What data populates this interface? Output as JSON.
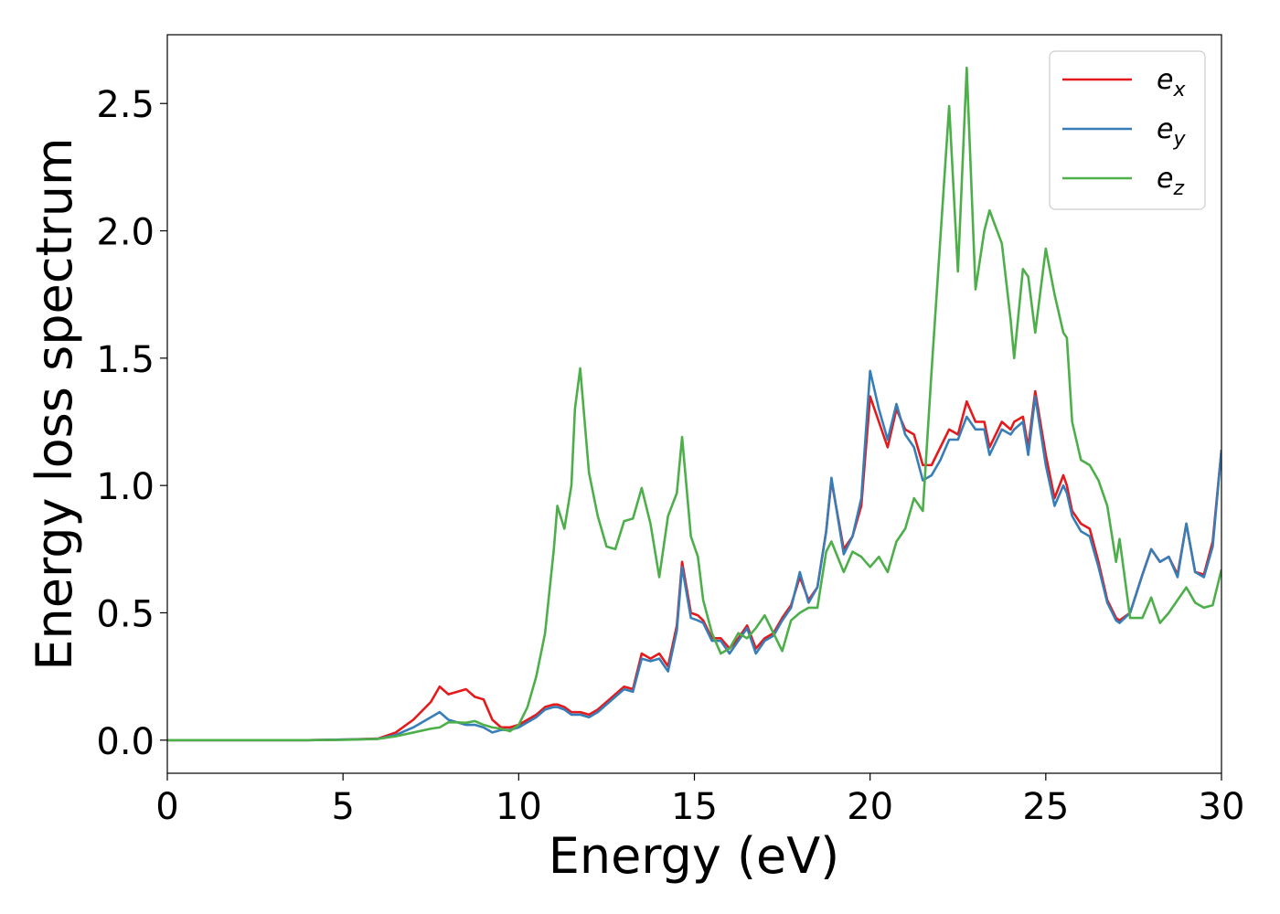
{
  "chart_data": {
    "type": "line",
    "xlabel": "Energy (eV)",
    "ylabel": "Energy loss spectrum",
    "x": [
      0,
      1,
      2,
      3,
      4,
      5,
      6,
      6.5,
      7,
      7.5,
      7.75,
      8,
      8.25,
      8.5,
      8.75,
      9,
      9.25,
      9.5,
      9.75,
      10,
      10.25,
      10.5,
      10.75,
      11,
      11.1,
      11.3,
      11.5,
      11.6,
      11.75,
      12,
      12.25,
      12.5,
      12.75,
      13,
      13.25,
      13.5,
      13.75,
      14,
      14.25,
      14.5,
      14.65,
      14.9,
      15.1,
      15.25,
      15.5,
      15.75,
      16,
      16.25,
      16.5,
      16.75,
      17,
      17.25,
      17.5,
      17.75,
      18,
      18.25,
      18.5,
      18.75,
      18.9,
      19.25,
      19.5,
      19.75,
      20,
      20.25,
      20.5,
      20.75,
      21,
      21.25,
      21.5,
      21.75,
      22,
      22.25,
      22.5,
      22.75,
      23,
      23.25,
      23.4,
      23.75,
      24,
      24.1,
      24.35,
      24.5,
      24.7,
      25,
      25.25,
      25.5,
      25.6,
      25.75,
      26,
      26.25,
      26.5,
      26.75,
      27,
      27.1,
      27.4,
      27.75,
      28,
      28.25,
      28.5,
      28.75,
      29,
      29.25,
      29.5,
      29.75,
      30
    ],
    "series": [
      {
        "name": "ex",
        "color": "#e41a1c",
        "values": [
          0,
          0,
          0,
          0,
          0,
          0.002,
          0.006,
          0.03,
          0.08,
          0.15,
          0.21,
          0.18,
          0.19,
          0.2,
          0.17,
          0.16,
          0.08,
          0.05,
          0.05,
          0.06,
          0.08,
          0.1,
          0.13,
          0.14,
          0.14,
          0.13,
          0.11,
          0.11,
          0.11,
          0.1,
          0.12,
          0.15,
          0.18,
          0.21,
          0.2,
          0.34,
          0.32,
          0.34,
          0.29,
          0.45,
          0.7,
          0.5,
          0.49,
          0.47,
          0.4,
          0.4,
          0.36,
          0.4,
          0.45,
          0.36,
          0.4,
          0.42,
          0.48,
          0.53,
          0.64,
          0.55,
          0.6,
          0.82,
          1.02,
          0.75,
          0.8,
          0.92,
          1.35,
          1.25,
          1.15,
          1.3,
          1.22,
          1.2,
          1.08,
          1.08,
          1.15,
          1.22,
          1.2,
          1.33,
          1.25,
          1.25,
          1.15,
          1.25,
          1.22,
          1.25,
          1.27,
          1.15,
          1.37,
          1.12,
          0.95,
          1.04,
          1.0,
          0.9,
          0.85,
          0.83,
          0.7,
          0.55,
          0.48,
          0.47,
          0.5,
          0.65,
          0.75,
          0.7,
          0.72,
          0.65,
          0.85,
          0.66,
          0.65,
          0.78,
          1.14
        ]
      },
      {
        "name": "ey",
        "color": "#377eb8",
        "values": [
          0,
          0,
          0,
          0,
          0,
          0.002,
          0.005,
          0.02,
          0.05,
          0.09,
          0.11,
          0.08,
          0.07,
          0.06,
          0.06,
          0.05,
          0.03,
          0.04,
          0.04,
          0.05,
          0.07,
          0.09,
          0.12,
          0.13,
          0.13,
          0.12,
          0.1,
          0.1,
          0.1,
          0.09,
          0.11,
          0.14,
          0.17,
          0.2,
          0.19,
          0.32,
          0.31,
          0.32,
          0.27,
          0.43,
          0.68,
          0.48,
          0.47,
          0.46,
          0.39,
          0.39,
          0.34,
          0.39,
          0.44,
          0.34,
          0.39,
          0.41,
          0.47,
          0.52,
          0.66,
          0.54,
          0.6,
          0.82,
          1.03,
          0.73,
          0.8,
          0.95,
          1.45,
          1.3,
          1.18,
          1.32,
          1.2,
          1.15,
          1.02,
          1.04,
          1.1,
          1.18,
          1.18,
          1.27,
          1.22,
          1.22,
          1.12,
          1.22,
          1.2,
          1.22,
          1.25,
          1.12,
          1.35,
          1.08,
          0.92,
          1.0,
          0.97,
          0.88,
          0.82,
          0.8,
          0.68,
          0.54,
          0.47,
          0.46,
          0.5,
          0.65,
          0.75,
          0.7,
          0.72,
          0.64,
          0.85,
          0.66,
          0.64,
          0.76,
          1.14
        ]
      },
      {
        "name": "ez",
        "color": "#4daf4a",
        "values": [
          0,
          0,
          0,
          0,
          0,
          0.001,
          0.005,
          0.015,
          0.03,
          0.045,
          0.05,
          0.07,
          0.07,
          0.068,
          0.075,
          0.06,
          0.05,
          0.045,
          0.035,
          0.06,
          0.13,
          0.25,
          0.42,
          0.75,
          0.92,
          0.83,
          1.0,
          1.3,
          1.46,
          1.05,
          0.88,
          0.76,
          0.75,
          0.86,
          0.87,
          0.99,
          0.85,
          0.64,
          0.88,
          0.97,
          1.19,
          0.8,
          0.72,
          0.55,
          0.42,
          0.34,
          0.36,
          0.42,
          0.4,
          0.44,
          0.49,
          0.42,
          0.35,
          0.47,
          0.5,
          0.52,
          0.52,
          0.74,
          0.78,
          0.66,
          0.74,
          0.72,
          0.68,
          0.72,
          0.66,
          0.78,
          0.83,
          0.95,
          0.9,
          1.45,
          1.97,
          2.49,
          1.84,
          2.64,
          1.77,
          2.0,
          2.08,
          1.95,
          1.65,
          1.5,
          1.85,
          1.82,
          1.6,
          1.93,
          1.75,
          1.6,
          1.58,
          1.25,
          1.1,
          1.08,
          1.02,
          0.92,
          0.7,
          0.79,
          0.48,
          0.48,
          0.56,
          0.46,
          0.5,
          0.55,
          0.6,
          0.54,
          0.52,
          0.53,
          0.67
        ]
      }
    ],
    "xlim": [
      0,
      30
    ],
    "xticks": [
      0,
      5,
      10,
      15,
      20,
      25,
      30
    ],
    "ylim": [
      -0.13,
      2.77
    ],
    "yticks": [
      {
        "value": 0,
        "label": "0.0"
      },
      0.5,
      {
        "value": 1,
        "label": "1.0"
      },
      1.5,
      {
        "value": 2,
        "label": "2.0"
      },
      2.5
    ],
    "legend": "upper right",
    "grid": false
  }
}
